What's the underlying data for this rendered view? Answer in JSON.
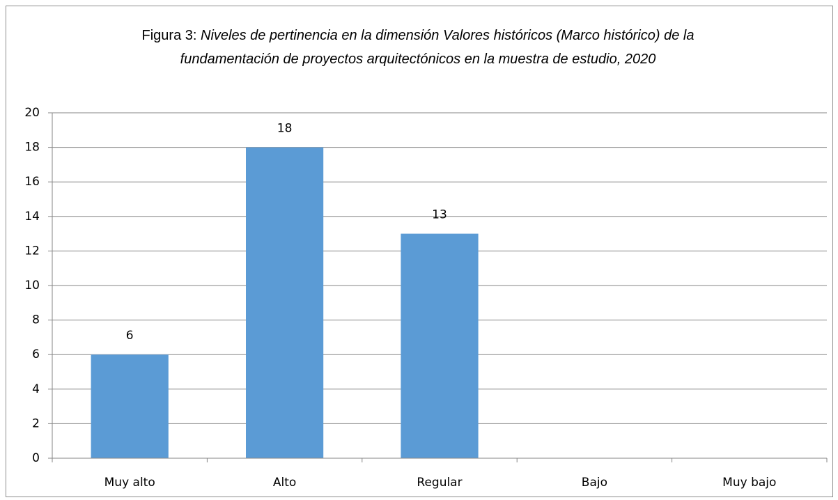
{
  "chart_data": {
    "type": "bar",
    "title": [
      "Figura 3:",
      "Niveles de pertinencia en la dimensión Valores históricos (Marco histórico) de la fundamentación de proyectos arquitectónicos en la muestra de estudio, 2020"
    ],
    "categories": [
      "Muy alto",
      "Alto",
      "Regular",
      "Bajo",
      "Muy bajo"
    ],
    "values": [
      6,
      18,
      13,
      null,
      null
    ],
    "color": "#5b9bd5",
    "ylim": [
      0,
      20
    ],
    "yticks": [
      0,
      2,
      4,
      6,
      8,
      10,
      12,
      14,
      16,
      18,
      20
    ],
    "grid": true
  }
}
